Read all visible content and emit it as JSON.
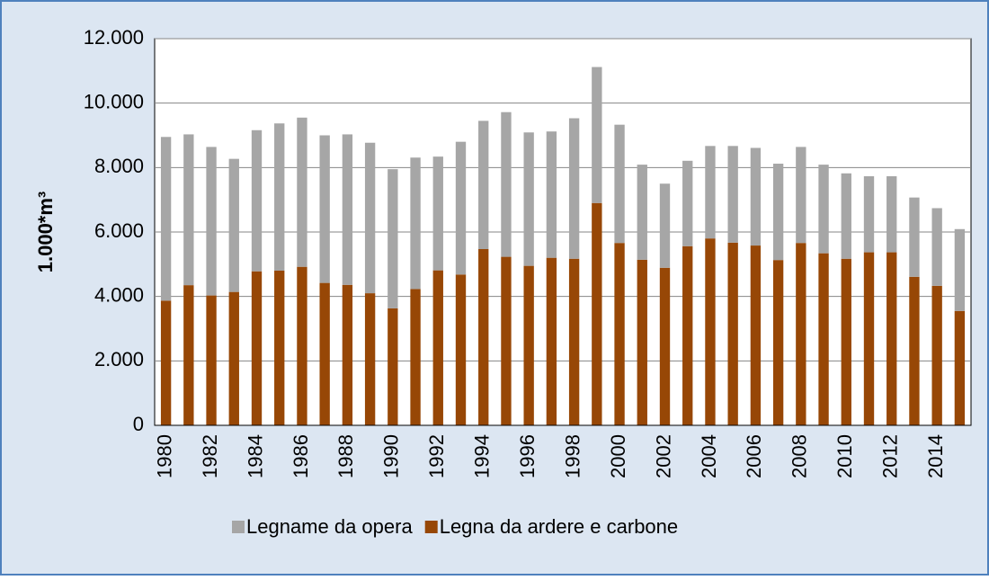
{
  "chart_data": {
    "type": "stacked-bar",
    "y_label": "1.000*m³",
    "categories": [
      "1980",
      null,
      "1982",
      null,
      "1984",
      null,
      "1986",
      null,
      "1988",
      null,
      "1990",
      null,
      "1992",
      null,
      "1994",
      null,
      "1996",
      null,
      "1998",
      null,
      "2000",
      null,
      "2002",
      null,
      "2004",
      null,
      "2006",
      null,
      "2008",
      null,
      "2010",
      null,
      "2012",
      null,
      "2014",
      null
    ],
    "series": [
      {
        "name": "Legname da opera",
        "color": "#a6a6a6",
        "values": [
          5080,
          4680,
          4610,
          4130,
          4380,
          4570,
          4630,
          4580,
          4670,
          4670,
          4320,
          4080,
          3530,
          4120,
          3980,
          4490,
          4140,
          3920,
          4360,
          4220,
          3670,
          2950,
          2610,
          2650,
          2870,
          3000,
          3030,
          2990,
          2980,
          2750,
          2650,
          2360,
          2360,
          2460,
          2410,
          2540
        ]
      },
      {
        "name": "Legna da ardere e carbone",
        "color": "#974706",
        "values": [
          3870,
          4350,
          4030,
          4140,
          4780,
          4800,
          4920,
          4420,
          4360,
          4100,
          3630,
          4230,
          4810,
          4680,
          5470,
          5230,
          4950,
          5200,
          5170,
          6900,
          5660,
          5140,
          4890,
          5560,
          5800,
          5670,
          5580,
          5130,
          5660,
          5340,
          5170,
          5370,
          5370,
          4610,
          4330,
          3550
        ]
      }
    ],
    "ylim": [
      0,
      12000
    ],
    "yticks": [
      0,
      {
        "value": 2000,
        "label": "2.000"
      },
      {
        "value": 4000,
        "label": "4.000"
      },
      {
        "value": 6000,
        "label": "6.000"
      },
      {
        "value": 8000,
        "label": "8.000"
      },
      {
        "value": 10000,
        "label": "10.000"
      },
      {
        "value": 12000,
        "label": "12.000"
      }
    ],
    "grid": true,
    "legend": "bottom"
  }
}
